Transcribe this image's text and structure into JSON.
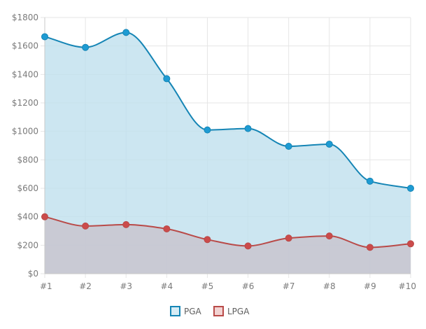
{
  "chart_data": {
    "type": "area",
    "categories": [
      "#1",
      "#2",
      "#3",
      "#4",
      "#5",
      "#6",
      "#7",
      "#8",
      "#9",
      "#10"
    ],
    "series": [
      {
        "name": "PGA",
        "values": [
          1665,
          1590,
          1695,
          1370,
          1010,
          1020,
          895,
          910,
          650,
          600
        ],
        "line_color": "#1585b5",
        "fill_color": "#bfe0ee",
        "marker_color": "#1e9bd3"
      },
      {
        "name": "LPGA",
        "values": [
          400,
          335,
          345,
          315,
          240,
          195,
          250,
          265,
          185,
          210
        ],
        "line_color": "#b94a48",
        "fill_color": "#c8c4cf",
        "marker_color": "#cb4b4b"
      }
    ],
    "y_ticks": [
      "$0",
      "$200",
      "$400",
      "$600",
      "$800",
      "$1000",
      "$1200",
      "$1400",
      "$1600",
      "$1800"
    ],
    "ylim": [
      0,
      1800
    ],
    "y_tick_step": 200,
    "grid": true,
    "grid_color": "#e6e6e6",
    "legend_position": "bottom-center"
  }
}
